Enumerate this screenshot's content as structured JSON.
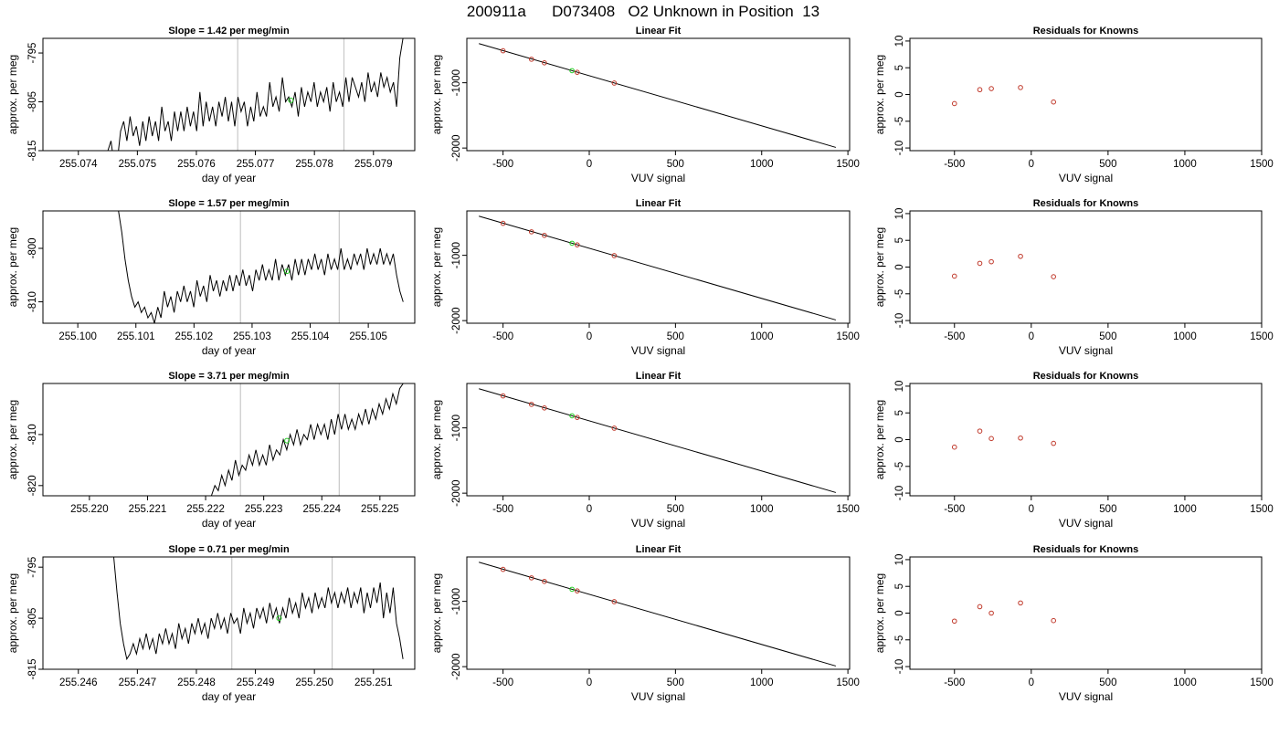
{
  "figure": {
    "title": "200911a      D073408   O2 Unknown in Position  13"
  },
  "chart_data": [
    {
      "type": "line",
      "row": 1,
      "col": 1,
      "title": "Slope =  1.42  per meg/min",
      "xlabel": "day of year",
      "ylabel": "approx. per meg",
      "xlim": [
        255.0734,
        255.0797
      ],
      "ylim": [
        -815,
        -792
      ],
      "xticks": [
        255.074,
        255.075,
        255.076,
        255.077,
        255.078,
        255.079
      ],
      "xtick_labels": [
        "255.074",
        "255.075",
        "255.076",
        "255.077",
        "255.078",
        "255.079"
      ],
      "yticks": [
        -815,
        -805,
        -795
      ],
      "ytick_labels": [
        "-815",
        "-805",
        "-795"
      ],
      "vlines": [
        255.0767,
        255.0785
      ],
      "highlight_point": {
        "x": 255.0776,
        "y": -804.7
      },
      "series": [
        {
          "x_start": 255.0745,
          "x_end": 255.0795,
          "values": [
            -815,
            -813,
            -818,
            -817,
            -811,
            -809,
            -813,
            -808,
            -812,
            -810,
            -814,
            -809,
            -813,
            -808,
            -812,
            -809,
            -813,
            -806,
            -811,
            -809,
            -813,
            -807,
            -811,
            -807,
            -811,
            -806,
            -810,
            -807,
            -811,
            -803,
            -810,
            -805,
            -809,
            -806,
            -810,
            -805,
            -808,
            -804,
            -809,
            -805,
            -810,
            -804,
            -807,
            -805,
            -810,
            -806,
            -809,
            -803,
            -808,
            -806,
            -808,
            -801,
            -806,
            -804,
            -807,
            -800,
            -805,
            -804,
            -806,
            -803,
            -808,
            -802,
            -806,
            -803,
            -805,
            -801,
            -806,
            -803,
            -805,
            -802,
            -807,
            -801,
            -805,
            -803,
            -806,
            -800,
            -805,
            -800,
            -802,
            -804,
            -801,
            -805,
            -799,
            -803,
            -801,
            -804,
            -799,
            -802,
            -800,
            -803,
            -801,
            -806,
            -796,
            -792
          ]
        }
      ]
    },
    {
      "type": "line",
      "row": 2,
      "col": 1,
      "title": "Slope =  1.57  per meg/min",
      "xlabel": "day of year",
      "ylabel": "approx. per meg",
      "xlim": [
        255.0994,
        255.1058
      ],
      "ylim": [
        -814,
        -793
      ],
      "xticks": [
        255.1,
        255.101,
        255.102,
        255.103,
        255.104,
        255.105
      ],
      "xtick_labels": [
        "255.100",
        "255.101",
        "255.102",
        "255.103",
        "255.104",
        "255.105"
      ],
      "yticks": [
        -810,
        -800
      ],
      "ytick_labels": [
        "-810",
        "-800"
      ],
      "vlines": [
        255.1028,
        255.1045
      ],
      "highlight_point": {
        "x": 255.1036,
        "y": -804.3
      },
      "series": [
        {
          "x_start": 255.1007,
          "x_end": 255.1056,
          "values": [
            -793,
            -797,
            -802,
            -806,
            -809,
            -811,
            -810,
            -812,
            -811,
            -813,
            -812,
            -814,
            -811,
            -813,
            -808,
            -811,
            -809,
            -812,
            -808,
            -810,
            -807,
            -810,
            -808,
            -811,
            -806,
            -809,
            -807,
            -810,
            -805,
            -808,
            -806,
            -809,
            -806,
            -808,
            -805,
            -808,
            -805,
            -807,
            -804,
            -807,
            -805,
            -808,
            -804,
            -806,
            -803,
            -806,
            -804,
            -806,
            -802,
            -806,
            -803,
            -805,
            -803,
            -806,
            -802,
            -805,
            -802,
            -805,
            -802,
            -804,
            -801,
            -804,
            -802,
            -805,
            -801,
            -804,
            -802,
            -804,
            -800,
            -804,
            -802,
            -804,
            -801,
            -803,
            -801,
            -804,
            -800,
            -803,
            -801,
            -803,
            -800,
            -803,
            -801,
            -803,
            -801,
            -805,
            -808,
            -810
          ]
        }
      ]
    },
    {
      "type": "line",
      "row": 3,
      "col": 1,
      "title": "Slope =  3.71  per meg/min",
      "xlabel": "day of year",
      "ylabel": "approx. per meg",
      "xlim": [
        255.2192,
        255.2256
      ],
      "ylim": [
        -822,
        -800
      ],
      "xticks": [
        255.22,
        255.221,
        255.222,
        255.223,
        255.224,
        255.225
      ],
      "xtick_labels": [
        "255.220",
        "255.221",
        "255.222",
        "255.223",
        "255.224",
        "255.225"
      ],
      "yticks": [
        -820,
        -810
      ],
      "ytick_labels": [
        "-820",
        "-810"
      ],
      "vlines": [
        255.2226,
        255.2243
      ],
      "highlight_point": {
        "x": 255.2234,
        "y": -811.2
      },
      "series": [
        {
          "x_start": 255.2221,
          "x_end": 255.2254,
          "values": [
            -822,
            -820,
            -821,
            -818,
            -820,
            -817,
            -819,
            -815,
            -818,
            -816,
            -817,
            -814,
            -816,
            -813,
            -816,
            -814,
            -816,
            -812,
            -815,
            -813,
            -814,
            -811,
            -813,
            -810,
            -812,
            -809,
            -812,
            -810,
            -811,
            -808,
            -811,
            -808,
            -810,
            -808,
            -811,
            -807,
            -810,
            -806,
            -809,
            -806,
            -809,
            -807,
            -809,
            -806,
            -808,
            -805,
            -808,
            -805,
            -807,
            -804,
            -806,
            -803,
            -805,
            -802,
            -804,
            -801,
            -800
          ]
        }
      ]
    },
    {
      "type": "line",
      "row": 4,
      "col": 1,
      "title": "Slope =  0.71  per meg/min",
      "xlabel": "day of year",
      "ylabel": "approx. per meg",
      "xlim": [
        255.2454,
        255.2517
      ],
      "ylim": [
        -815,
        -793
      ],
      "xticks": [
        255.246,
        255.247,
        255.248,
        255.249,
        255.25,
        255.251
      ],
      "xtick_labels": [
        "255.246",
        "255.247",
        "255.248",
        "255.249",
        "255.250",
        "255.251"
      ],
      "yticks": [
        -815,
        -805,
        -795
      ],
      "ytick_labels": [
        "-815",
        "-805",
        "-795"
      ],
      "vlines": [
        255.2486,
        255.2503
      ],
      "highlight_point": {
        "x": 255.2494,
        "y": -805.0
      },
      "series": [
        {
          "x_start": 255.2466,
          "x_end": 255.2515,
          "values": [
            -793,
            -800,
            -806,
            -810,
            -813,
            -812,
            -810,
            -812,
            -809,
            -811,
            -808,
            -811,
            -809,
            -812,
            -808,
            -810,
            -807,
            -810,
            -808,
            -811,
            -806,
            -809,
            -807,
            -810,
            -806,
            -808,
            -805,
            -808,
            -806,
            -809,
            -805,
            -807,
            -804,
            -807,
            -805,
            -808,
            -804,
            -806,
            -805,
            -808,
            -803,
            -806,
            -804,
            -807,
            -803,
            -805,
            -803,
            -806,
            -802,
            -805,
            -803,
            -806,
            -803,
            -805,
            -801,
            -804,
            -802,
            -805,
            -800,
            -803,
            -801,
            -804,
            -800,
            -803,
            -801,
            -803,
            -799,
            -802,
            -800,
            -803,
            -800,
            -802,
            -799,
            -803,
            -800,
            -802,
            -799,
            -804,
            -800,
            -803,
            -799,
            -802,
            -798,
            -805,
            -800,
            -804,
            -799,
            -806,
            -809,
            -813
          ]
        }
      ]
    },
    {
      "type": "scatter",
      "row": 1,
      "col": 2,
      "title": "Linear Fit",
      "xlabel": "VUV signal",
      "ylabel": "approx. per meg",
      "xlim": [
        -710,
        1510
      ],
      "ylim": [
        -2040,
        -320
      ],
      "xticks": [
        -500,
        0,
        500,
        1000,
        1500
      ],
      "xtick_labels": [
        "-500",
        "0",
        "500",
        "1000",
        "1500"
      ],
      "yticks": [
        -2000,
        -1000
      ],
      "ytick_labels": [
        "-2000",
        "-1000"
      ],
      "fit_line": {
        "x": [
          -640,
          1430
        ],
        "y": [
          -400,
          -1990
        ]
      },
      "points": [
        {
          "x": -500,
          "y": -510
        },
        {
          "x": -335,
          "y": -640
        },
        {
          "x": -260,
          "y": -695
        },
        {
          "x": -70,
          "y": -840
        },
        {
          "x": 145,
          "y": -1005
        }
      ],
      "unknown_point": {
        "x": -100,
        "y": -815
      }
    },
    {
      "type": "scatter",
      "row": 2,
      "col": 2,
      "title": "Linear Fit",
      "xlabel": "VUV signal",
      "ylabel": "approx. per meg",
      "xlim": [
        -710,
        1510
      ],
      "ylim": [
        -2040,
        -320
      ],
      "xticks": [
        -500,
        0,
        500,
        1000,
        1500
      ],
      "xtick_labels": [
        "-500",
        "0",
        "500",
        "1000",
        "1500"
      ],
      "yticks": [
        -2000,
        -1000
      ],
      "ytick_labels": [
        "-2000",
        "-1000"
      ],
      "fit_line": {
        "x": [
          -640,
          1430
        ],
        "y": [
          -400,
          -1990
        ]
      },
      "points": [
        {
          "x": -500,
          "y": -510
        },
        {
          "x": -335,
          "y": -640
        },
        {
          "x": -260,
          "y": -695
        },
        {
          "x": -70,
          "y": -840
        },
        {
          "x": 145,
          "y": -1005
        }
      ],
      "unknown_point": {
        "x": -100,
        "y": -815
      }
    },
    {
      "type": "scatter",
      "row": 3,
      "col": 2,
      "title": "Linear Fit",
      "xlabel": "VUV signal",
      "ylabel": "approx. per meg",
      "xlim": [
        -710,
        1510
      ],
      "ylim": [
        -2040,
        -320
      ],
      "xticks": [
        -500,
        0,
        500,
        1000,
        1500
      ],
      "xtick_labels": [
        "-500",
        "0",
        "500",
        "1000",
        "1500"
      ],
      "yticks": [
        -2000,
        -1000
      ],
      "ytick_labels": [
        "-2000",
        "-1000"
      ],
      "fit_line": {
        "x": [
          -640,
          1430
        ],
        "y": [
          -400,
          -1990
        ]
      },
      "points": [
        {
          "x": -500,
          "y": -510
        },
        {
          "x": -335,
          "y": -640
        },
        {
          "x": -260,
          "y": -695
        },
        {
          "x": -70,
          "y": -840
        },
        {
          "x": 145,
          "y": -1005
        }
      ],
      "unknown_point": {
        "x": -100,
        "y": -815
      }
    },
    {
      "type": "scatter",
      "row": 4,
      "col": 2,
      "title": "Linear Fit",
      "xlabel": "VUV signal",
      "ylabel": "approx. per meg",
      "xlim": [
        -710,
        1510
      ],
      "ylim": [
        -2040,
        -320
      ],
      "xticks": [
        -500,
        0,
        500,
        1000,
        1500
      ],
      "xtick_labels": [
        "-500",
        "0",
        "500",
        "1000",
        "1500"
      ],
      "yticks": [
        -2000,
        -1000
      ],
      "ytick_labels": [
        "-2000",
        "-1000"
      ],
      "fit_line": {
        "x": [
          -640,
          1430
        ],
        "y": [
          -400,
          -1990
        ]
      },
      "points": [
        {
          "x": -500,
          "y": -510
        },
        {
          "x": -335,
          "y": -640
        },
        {
          "x": -260,
          "y": -695
        },
        {
          "x": -70,
          "y": -840
        },
        {
          "x": 145,
          "y": -1005
        }
      ],
      "unknown_point": {
        "x": -100,
        "y": -815
      }
    },
    {
      "type": "scatter",
      "row": 1,
      "col": 3,
      "title": "Residuals for Knowns",
      "xlabel": "VUV signal",
      "ylabel": "approx. per meg",
      "xlim": [
        -790,
        1500
      ],
      "ylim": [
        -10.5,
        10.5
      ],
      "xticks": [
        -500,
        0,
        500,
        1000,
        1500
      ],
      "xtick_labels": [
        "-500",
        "0",
        "500",
        "1000",
        "1500"
      ],
      "yticks": [
        -10,
        -5,
        0,
        5,
        10
      ],
      "ytick_labels": [
        "-10",
        "-5",
        "0",
        "5",
        "10"
      ],
      "points": [
        {
          "x": -500,
          "y": -1.7
        },
        {
          "x": -335,
          "y": 0.9
        },
        {
          "x": -260,
          "y": 1.1
        },
        {
          "x": -70,
          "y": 1.3
        },
        {
          "x": 145,
          "y": -1.4
        }
      ]
    },
    {
      "type": "scatter",
      "row": 2,
      "col": 3,
      "title": "Residuals for Knowns",
      "xlabel": "VUV signal",
      "ylabel": "approx. per meg",
      "xlim": [
        -790,
        1500
      ],
      "ylim": [
        -10.5,
        10.5
      ],
      "xticks": [
        -500,
        0,
        500,
        1000,
        1500
      ],
      "xtick_labels": [
        "-500",
        "0",
        "500",
        "1000",
        "1500"
      ],
      "yticks": [
        -10,
        -5,
        0,
        5,
        10
      ],
      "ytick_labels": [
        "-10",
        "-5",
        "0",
        "5",
        "10"
      ],
      "points": [
        {
          "x": -500,
          "y": -1.7
        },
        {
          "x": -335,
          "y": 0.7
        },
        {
          "x": -260,
          "y": 1.0
        },
        {
          "x": -70,
          "y": 2.0
        },
        {
          "x": 145,
          "y": -1.8
        }
      ]
    },
    {
      "type": "scatter",
      "row": 3,
      "col": 3,
      "title": "Residuals for Knowns",
      "xlabel": "VUV signal",
      "ylabel": "approx. per meg",
      "xlim": [
        -790,
        1500
      ],
      "ylim": [
        -10.5,
        10.5
      ],
      "xticks": [
        -500,
        0,
        500,
        1000,
        1500
      ],
      "xtick_labels": [
        "-500",
        "0",
        "500",
        "1000",
        "1500"
      ],
      "yticks": [
        -10,
        -5,
        0,
        5,
        10
      ],
      "ytick_labels": [
        "-10",
        "-5",
        "0",
        "5",
        "10"
      ],
      "points": [
        {
          "x": -500,
          "y": -1.4
        },
        {
          "x": -335,
          "y": 1.6
        },
        {
          "x": -260,
          "y": 0.2
        },
        {
          "x": -70,
          "y": 0.3
        },
        {
          "x": 145,
          "y": -0.7
        }
      ]
    },
    {
      "type": "scatter",
      "row": 4,
      "col": 3,
      "title": "Residuals for Knowns",
      "xlabel": "VUV signal",
      "ylabel": "approx. per meg",
      "xlim": [
        -790,
        1500
      ],
      "ylim": [
        -10.5,
        10.5
      ],
      "xticks": [
        -500,
        0,
        500,
        1000,
        1500
      ],
      "xtick_labels": [
        "-500",
        "0",
        "500",
        "1000",
        "1500"
      ],
      "yticks": [
        -10,
        -5,
        0,
        5,
        10
      ],
      "ytick_labels": [
        "-10",
        "-5",
        "0",
        "5",
        "10"
      ],
      "points": [
        {
          "x": -500,
          "y": -1.5
        },
        {
          "x": -335,
          "y": 1.2
        },
        {
          "x": -260,
          "y": 0.0
        },
        {
          "x": -70,
          "y": 1.9
        },
        {
          "x": 145,
          "y": -1.4
        }
      ]
    }
  ],
  "colors": {
    "line": "#000000",
    "vline": "#c8c8c8",
    "known_point": "#c0392b",
    "unknown_point": "#22cc22",
    "axis": "#000000"
  }
}
